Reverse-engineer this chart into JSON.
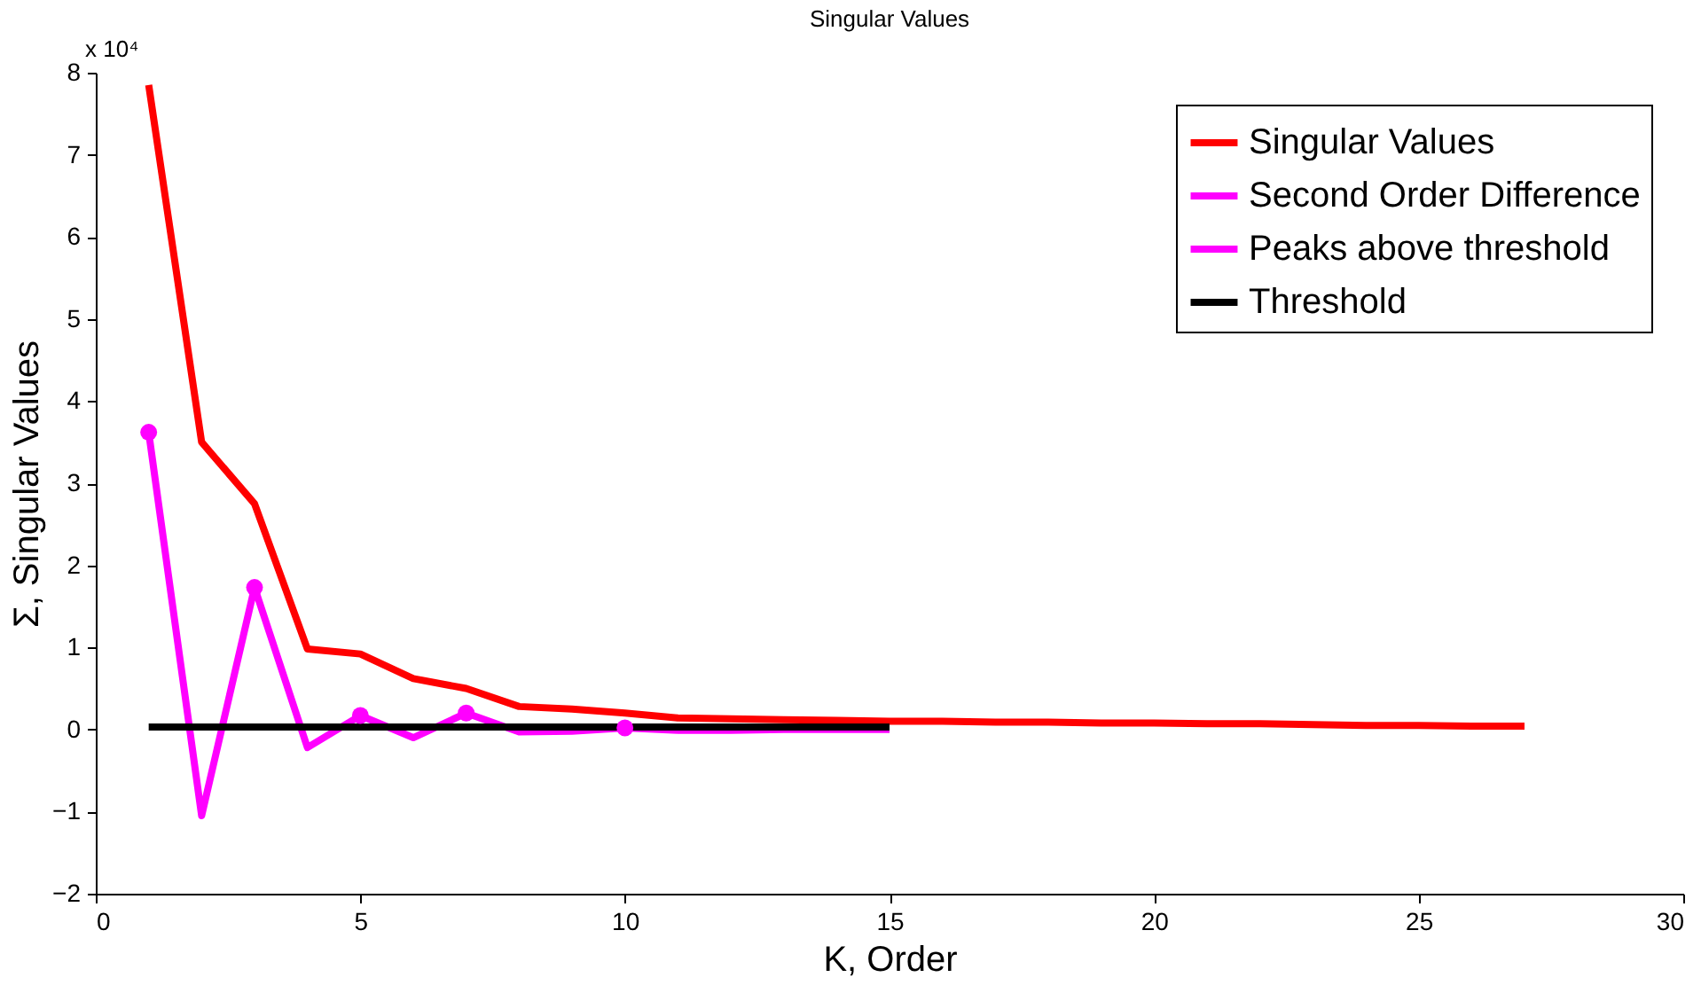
{
  "chart_data": {
    "type": "line",
    "title": "Singular Values",
    "xlabel": "K, Order",
    "ylabel": "Σ, Singular Values",
    "annotations": [
      "x 10⁴"
    ],
    "xlim": [
      0,
      30
    ],
    "xticks": [
      0,
      5,
      10,
      15,
      20,
      25,
      30
    ],
    "ylim": [
      -2,
      8
    ],
    "yticks": [
      -2,
      -1,
      0,
      1,
      2,
      3,
      4,
      5,
      6,
      7,
      8
    ],
    "grid": false,
    "legend": "top right",
    "line_style": "solid",
    "series": [
      {
        "name": "Singular Values",
        "color": "#ff0000",
        "x": [
          1,
          2,
          3,
          4,
          5,
          6,
          7,
          8,
          9,
          10,
          11,
          12,
          13,
          14,
          15,
          16,
          17,
          18,
          19,
          20,
          21,
          22,
          23,
          24,
          25,
          26,
          27
        ],
        "values": [
          7.85,
          3.5,
          2.75,
          0.98,
          0.92,
          0.62,
          0.5,
          0.28,
          0.25,
          0.2,
          0.14,
          0.13,
          0.12,
          0.11,
          0.1,
          0.1,
          0.09,
          0.09,
          0.08,
          0.08,
          0.07,
          0.07,
          0.06,
          0.05,
          0.05,
          0.04,
          0.04
        ]
      },
      {
        "name": "Second Order Difference",
        "color": "#ff00ff",
        "x": [
          1,
          2,
          3,
          4,
          5,
          6,
          7,
          8,
          9,
          10,
          11,
          12,
          13,
          14,
          15
        ],
        "values": [
          3.62,
          -1.05,
          1.73,
          -0.22,
          0.17,
          -0.1,
          0.2,
          -0.03,
          -0.02,
          0.02,
          -0.01,
          -0.01,
          0,
          0,
          0
        ]
      },
      {
        "name": "Peaks above threshold",
        "color": "#ff00ff",
        "type": "scatter",
        "marker": "circle",
        "x": [
          1,
          3,
          5,
          7,
          10
        ],
        "values": [
          3.62,
          1.73,
          0.17,
          0.2,
          0.02
        ]
      },
      {
        "name": "Threshold",
        "color": "#000000",
        "x": [
          1,
          15
        ],
        "values": [
          0.03,
          0.03
        ]
      }
    ]
  }
}
